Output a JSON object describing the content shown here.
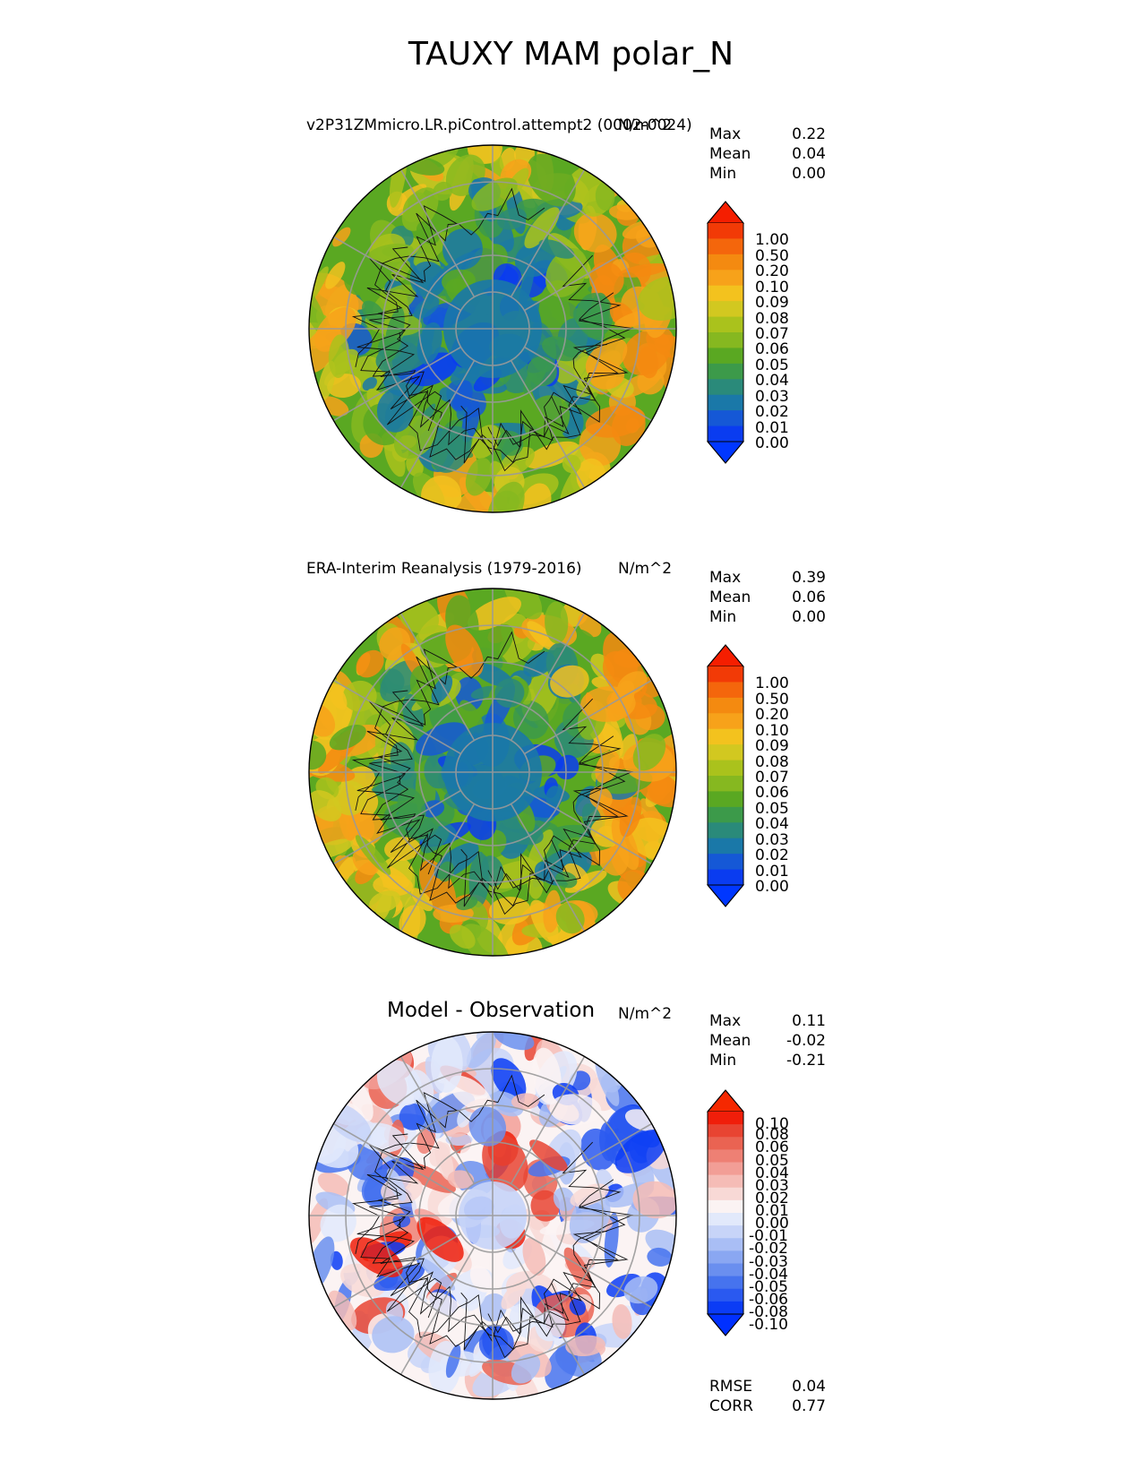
{
  "figure": {
    "title": "TAUXY MAM polar_N"
  },
  "panels": [
    {
      "title": "v2P31ZMmicro.LR.piControl.attempt2 (0002-0024)",
      "units": "N/m^2",
      "stats": [
        {
          "label": "Max",
          "value": "0.22"
        },
        {
          "label": "Mean",
          "value": "0.04"
        },
        {
          "label": "Min",
          "value": "0.00"
        }
      ],
      "levels": [
        "1.00",
        "0.50",
        "0.20",
        "0.10",
        "0.09",
        "0.08",
        "0.07",
        "0.06",
        "0.05",
        "0.04",
        "0.03",
        "0.02",
        "0.01",
        "0.00"
      ]
    },
    {
      "title": "ERA-Interim Reanalysis (1979-2016)",
      "units": "N/m^2",
      "stats": [
        {
          "label": "Max",
          "value": "0.39"
        },
        {
          "label": "Mean",
          "value": "0.06"
        },
        {
          "label": "Min",
          "value": "0.00"
        }
      ],
      "levels": [
        "1.00",
        "0.50",
        "0.20",
        "0.10",
        "0.09",
        "0.08",
        "0.07",
        "0.06",
        "0.05",
        "0.04",
        "0.03",
        "0.02",
        "0.01",
        "0.00"
      ]
    },
    {
      "title": "Model - Observation",
      "units": "N/m^2",
      "stats": [
        {
          "label": "Max",
          "value": "0.11"
        },
        {
          "label": "Mean",
          "value": "-0.02"
        },
        {
          "label": "Min",
          "value": "-0.21"
        }
      ],
      "levels": [
        "0.10",
        "0.08",
        "0.06",
        "0.05",
        "0.04",
        "0.03",
        "0.02",
        "0.01",
        "0.00",
        "-0.01",
        "-0.02",
        "-0.03",
        "-0.04",
        "-0.05",
        "-0.06",
        "-0.08",
        "-0.10"
      ],
      "metrics": [
        {
          "label": "RMSE",
          "value": "0.04"
        },
        {
          "label": "CORR",
          "value": "0.77"
        }
      ]
    }
  ],
  "colors": {
    "seq": [
      "#0a3cf0",
      "#1558d6",
      "#1a78a8",
      "#2a8a7a",
      "#3c9a4a",
      "#5aa822",
      "#86b820",
      "#aac21c",
      "#d2c820",
      "#f3c21e",
      "#f7a21a",
      "#f48a10",
      "#f4660c",
      "#f23a06"
    ],
    "seq_over": "#f51e00",
    "seq_under": "#0037ff",
    "div": [
      "#0b3cf5",
      "#2a59f0",
      "#4673ee",
      "#6a8fef",
      "#8aa7f2",
      "#a9bef5",
      "#c7d4f8",
      "#e2e9fb",
      "#fbf3f3",
      "#f8d9d6",
      "#f5bcb6",
      "#f29e96",
      "#ee8074",
      "#ea6352",
      "#e84432",
      "#f01e0a"
    ],
    "div_over": "#f52800",
    "div_under": "#0030ff"
  }
}
